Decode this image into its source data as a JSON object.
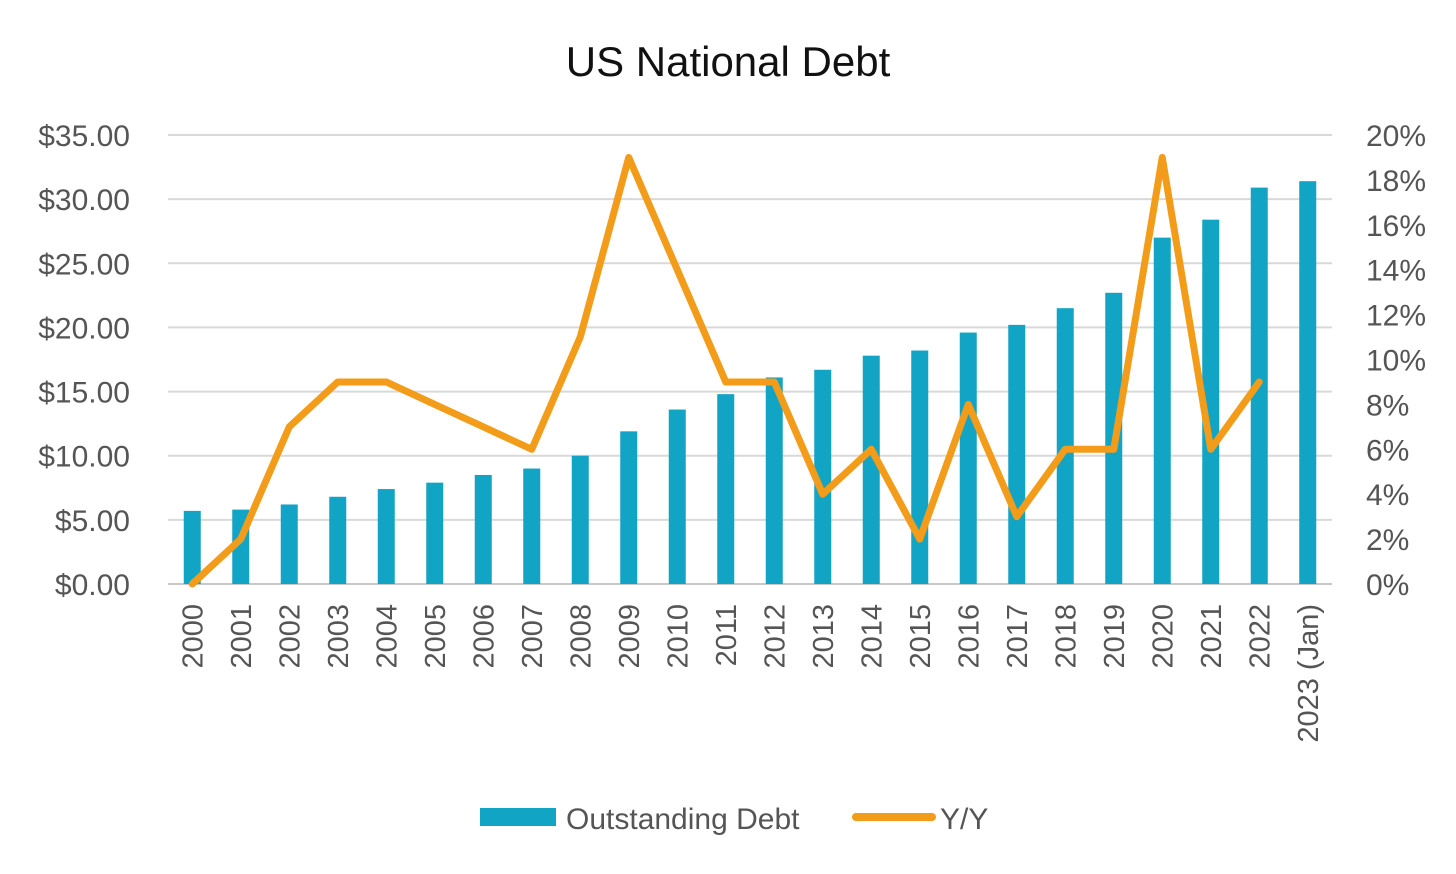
{
  "chart_data": {
    "type": "bar",
    "title": "US National Debt",
    "categories": [
      "2000",
      "2001",
      "2002",
      "2003",
      "2004",
      "2005",
      "2006",
      "2007",
      "2008",
      "2009",
      "2010",
      "2011",
      "2012",
      "2013",
      "2014",
      "2015",
      "2016",
      "2017",
      "2018",
      "2019",
      "2020",
      "2021",
      "2022",
      "2023 (Jan)"
    ],
    "series": [
      {
        "name": "Outstanding Debt",
        "type": "bar",
        "axis": "left",
        "color": "#12A4C4",
        "values": [
          5.7,
          5.8,
          6.2,
          6.8,
          7.4,
          7.9,
          8.5,
          9.0,
          10.0,
          11.9,
          13.6,
          14.8,
          16.1,
          16.7,
          17.8,
          18.2,
          19.6,
          20.2,
          21.5,
          22.7,
          27.0,
          28.4,
          30.9,
          31.4
        ]
      },
      {
        "name": "Y/Y",
        "type": "line",
        "axis": "right",
        "color": "#F39C1A",
        "values": [
          0,
          2,
          7,
          9,
          9,
          8,
          7,
          6,
          11,
          19,
          14,
          9,
          9,
          4,
          6,
          2,
          8,
          3,
          6,
          6,
          19,
          6,
          9,
          null
        ]
      }
    ],
    "y_left": {
      "min": 0,
      "max": 35,
      "step": 5,
      "tick_labels": [
        "$0.00",
        "$5.00",
        "$10.00",
        "$15.00",
        "$20.00",
        "$25.00",
        "$30.00",
        "$35.00"
      ]
    },
    "y_right": {
      "min": 0,
      "max": 20,
      "step": 2,
      "tick_labels": [
        "0%",
        "2%",
        "4%",
        "6%",
        "8%",
        "10%",
        "12%",
        "14%",
        "16%",
        "18%",
        "20%"
      ]
    },
    "xlabel": "",
    "ylabel": "",
    "grid": true,
    "legend_position": "bottom"
  }
}
